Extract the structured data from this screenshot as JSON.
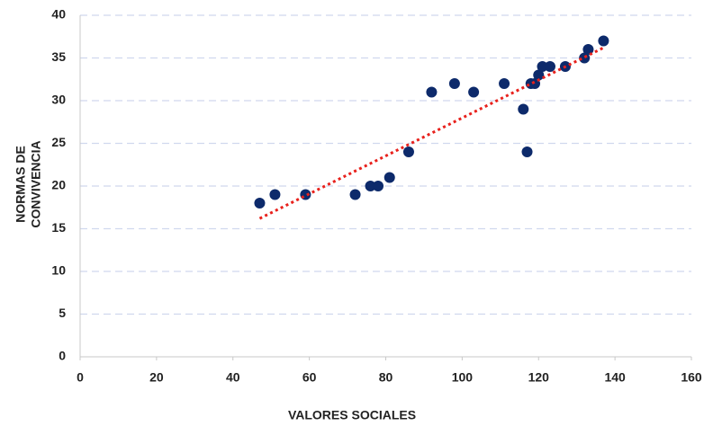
{
  "chart_data": {
    "type": "scatter",
    "xlabel": "VALORES SOCIALES",
    "ylabel": [
      "NORMAS DE",
      "CONVIVENCIA"
    ],
    "x": [
      47,
      51,
      59,
      72,
      76,
      78,
      81,
      86,
      92,
      98,
      103,
      111,
      116,
      117,
      118,
      119,
      120,
      121,
      123,
      127,
      132,
      133,
      137
    ],
    "values": [
      18,
      19,
      19,
      19,
      20,
      20,
      21,
      24,
      31,
      32,
      31,
      32,
      29,
      24,
      32,
      32,
      33,
      34,
      34,
      34,
      35,
      36,
      37
    ],
    "color": "#0d2a6b",
    "trendline": {
      "x": [
        47,
        137
      ],
      "values": [
        16.2,
        36.2
      ],
      "color": "#e8211c"
    },
    "xlim": [
      0,
      160
    ],
    "xticks": [
      0,
      20,
      40,
      60,
      80,
      100,
      120,
      140,
      160
    ],
    "ylim": [
      0,
      40
    ],
    "yticks": [
      0,
      5,
      10,
      15,
      20,
      25,
      30,
      35,
      40
    ],
    "grid": true
  }
}
